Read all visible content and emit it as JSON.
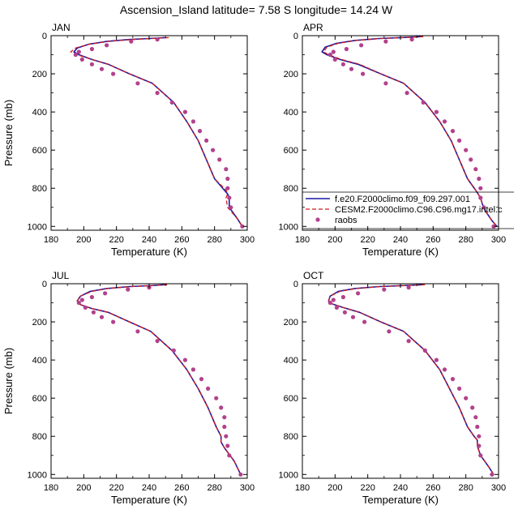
{
  "figure": {
    "title": "Ascension_Island  latitude= 7.58 S longitude= 14.24 W"
  },
  "legend": {
    "placement": "inside APR panel, lower-right",
    "entries": [
      {
        "label": "f.e20.F2000climo.f09_f09.297.001",
        "style": "line",
        "color": "#1a1aa6"
      },
      {
        "label": "CESM2.F2000climo.C96.C96.mg17.intel.c",
        "style": "dashed",
        "color": "#d01c1c"
      },
      {
        "label": "raobs",
        "style": "marker",
        "color": "#b2418c"
      }
    ]
  },
  "colors": {
    "model1": "#1a1aa6",
    "model2": "#d01c1c",
    "raobs": "#b2418c"
  },
  "chart_data": [
    {
      "type": "line",
      "panel": "JAN",
      "title": "JAN",
      "xlabel": "Temperature (K)",
      "ylabel": "Pressure (mb)",
      "xlim": [
        180,
        300
      ],
      "ylim": [
        1020,
        0
      ],
      "xticks": [
        180,
        200,
        220,
        240,
        260,
        280,
        300
      ],
      "yticks": [
        0,
        200,
        400,
        600,
        800,
        1000
      ],
      "series": [
        {
          "name": "f.e20.F2000climo.f09_f09.297.001",
          "x": [
            250,
            240,
            228,
            214,
            203,
            196,
            194,
            197,
            205,
            215,
            228,
            242,
            255,
            263,
            270,
            275,
            280,
            286,
            288,
            289,
            289,
            294,
            297
          ],
          "y": [
            10,
            15,
            20,
            30,
            45,
            65,
            85,
            100,
            125,
            150,
            200,
            250,
            350,
            450,
            550,
            650,
            750,
            810,
            830,
            850,
            900,
            960,
            1000
          ]
        },
        {
          "name": "CESM2.F2000climo.C96.C96.mg17.intel.c",
          "x": [
            252,
            242,
            230,
            215,
            203,
            195,
            192,
            196,
            205,
            215,
            228,
            242,
            255,
            263,
            270,
            275,
            280,
            287,
            288,
            287,
            288,
            294,
            297
          ],
          "y": [
            10,
            15,
            20,
            30,
            45,
            65,
            85,
            100,
            125,
            150,
            200,
            250,
            350,
            450,
            550,
            650,
            750,
            810,
            830,
            850,
            900,
            960,
            1000
          ]
        },
        {
          "name": "raobs",
          "x": [
            245,
            229,
            214,
            205,
            197,
            195,
            199,
            205,
            211,
            218,
            233,
            245,
            254,
            262,
            267,
            271,
            275,
            279,
            283,
            287,
            288,
            288,
            289,
            290,
            297
          ],
          "y": [
            20,
            30,
            50,
            70,
            85,
            100,
            125,
            150,
            175,
            200,
            250,
            300,
            350,
            400,
            450,
            500,
            550,
            600,
            650,
            700,
            750,
            800,
            850,
            900,
            1000
          ]
        }
      ]
    },
    {
      "type": "line",
      "panel": "APR",
      "title": "APR",
      "xlabel": "Temperature (K)",
      "ylabel": "",
      "xlim": [
        180,
        300
      ],
      "ylim": [
        1020,
        0
      ],
      "xticks": [
        180,
        200,
        220,
        240,
        260,
        280,
        300
      ],
      "yticks": [
        0,
        200,
        400,
        600,
        800,
        1000
      ],
      "series": [
        {
          "name": "f.e20.F2000climo.f09_f09.297.001",
          "x": [
            253,
            240,
            227,
            212,
            201,
            194,
            192,
            195,
            203,
            214,
            228,
            242,
            255,
            264,
            271,
            276,
            281,
            286,
            289,
            290,
            292,
            296,
            299
          ],
          "y": [
            5,
            10,
            15,
            25,
            40,
            60,
            85,
            100,
            125,
            150,
            200,
            250,
            350,
            450,
            550,
            650,
            750,
            810,
            850,
            880,
            920,
            970,
            1000
          ]
        },
        {
          "name": "CESM2.F2000climo.C96.C96.mg17.intel.c",
          "x": [
            254,
            241,
            228,
            213,
            202,
            195,
            193,
            196,
            204,
            215,
            228,
            242,
            255,
            264,
            271,
            276,
            281,
            286,
            289,
            290,
            292,
            296,
            299
          ],
          "y": [
            5,
            10,
            15,
            25,
            40,
            60,
            85,
            100,
            125,
            150,
            200,
            250,
            350,
            450,
            550,
            650,
            750,
            810,
            850,
            880,
            920,
            970,
            1000
          ]
        },
        {
          "name": "raobs",
          "x": [
            247,
            231,
            216,
            207,
            199,
            197,
            200,
            205,
            210,
            217,
            231,
            244,
            254,
            262,
            267,
            272,
            276,
            280,
            283,
            286,
            288,
            289,
            289,
            291,
            297
          ],
          "y": [
            20,
            30,
            50,
            70,
            85,
            100,
            125,
            150,
            175,
            200,
            250,
            300,
            350,
            400,
            450,
            500,
            550,
            600,
            650,
            700,
            750,
            800,
            850,
            900,
            1000
          ]
        }
      ]
    },
    {
      "type": "line",
      "panel": "JUL",
      "title": "JUL",
      "xlabel": "Temperature (K)",
      "ylabel": "Pressure (mb)",
      "xlim": [
        180,
        300
      ],
      "ylim": [
        1020,
        0
      ],
      "xticks": [
        180,
        200,
        220,
        240,
        260,
        280,
        300
      ],
      "yticks": [
        0,
        200,
        400,
        600,
        800,
        1000
      ],
      "series": [
        {
          "name": "f.e20.F2000climo.f09_f09.297.001",
          "x": [
            250,
            240,
            228,
            214,
            204,
            198,
            196,
            198,
            205,
            215,
            228,
            241,
            254,
            263,
            270,
            276,
            281,
            284,
            284,
            286,
            292,
            296
          ],
          "y": [
            5,
            10,
            15,
            25,
            40,
            65,
            90,
            110,
            130,
            150,
            200,
            250,
            350,
            450,
            550,
            650,
            750,
            800,
            830,
            860,
            930,
            1000
          ]
        },
        {
          "name": "CESM2.F2000climo.C96.C96.mg17.intel.c",
          "x": [
            251,
            241,
            229,
            215,
            205,
            198,
            196,
            198,
            205,
            215,
            228,
            241,
            254,
            263,
            270,
            276,
            281,
            284,
            284,
            286,
            292,
            296
          ],
          "y": [
            5,
            10,
            15,
            25,
            40,
            65,
            90,
            110,
            130,
            150,
            200,
            250,
            350,
            450,
            550,
            650,
            750,
            800,
            830,
            860,
            930,
            1000
          ]
        },
        {
          "name": "raobs",
          "x": [
            240,
            227,
            213,
            205,
            199,
            197,
            201,
            206,
            211,
            218,
            233,
            245,
            255,
            262,
            267,
            272,
            276,
            281,
            284,
            286,
            286,
            287,
            288,
            289,
            296
          ],
          "y": [
            20,
            30,
            50,
            70,
            85,
            100,
            125,
            150,
            175,
            200,
            250,
            300,
            350,
            400,
            450,
            500,
            550,
            600,
            650,
            700,
            750,
            800,
            850,
            900,
            1000
          ]
        }
      ]
    },
    {
      "type": "line",
      "panel": "OCT",
      "title": "OCT",
      "xlabel": "Temperature (K)",
      "ylabel": "",
      "xlim": [
        180,
        300
      ],
      "ylim": [
        1020,
        0
      ],
      "xticks": [
        180,
        200,
        220,
        240,
        260,
        280,
        300
      ],
      "yticks": [
        0,
        200,
        400,
        600,
        800,
        1000
      ],
      "series": [
        {
          "name": "f.e20.F2000climo.f09_f09.297.001",
          "x": [
            254,
            240,
            227,
            212,
            202,
            197,
            196,
            198,
            205,
            215,
            228,
            242,
            255,
            264,
            270,
            276,
            281,
            285,
            287,
            287,
            289,
            294,
            297
          ],
          "y": [
            5,
            10,
            15,
            25,
            40,
            65,
            90,
            105,
            125,
            150,
            200,
            250,
            350,
            450,
            550,
            650,
            750,
            800,
            820,
            850,
            900,
            960,
            1000
          ]
        },
        {
          "name": "CESM2.F2000climo.C96.C96.mg17.intel.c",
          "x": [
            255,
            241,
            228,
            213,
            203,
            197,
            196,
            198,
            205,
            215,
            228,
            242,
            255,
            264,
            270,
            276,
            281,
            285,
            287,
            287,
            289,
            294,
            297
          ],
          "y": [
            5,
            10,
            15,
            25,
            40,
            65,
            90,
            105,
            125,
            150,
            200,
            250,
            350,
            450,
            550,
            650,
            750,
            800,
            820,
            850,
            900,
            960,
            1000
          ]
        },
        {
          "name": "raobs",
          "x": [
            245,
            230,
            214,
            205,
            199,
            197,
            201,
            206,
            211,
            218,
            233,
            245,
            255,
            262,
            267,
            272,
            276,
            280,
            284,
            286,
            287,
            288,
            288,
            289,
            296
          ],
          "y": [
            20,
            30,
            50,
            70,
            85,
            100,
            125,
            150,
            175,
            200,
            250,
            300,
            350,
            400,
            450,
            500,
            550,
            600,
            650,
            700,
            750,
            800,
            850,
            900,
            1000
          ]
        }
      ]
    }
  ]
}
